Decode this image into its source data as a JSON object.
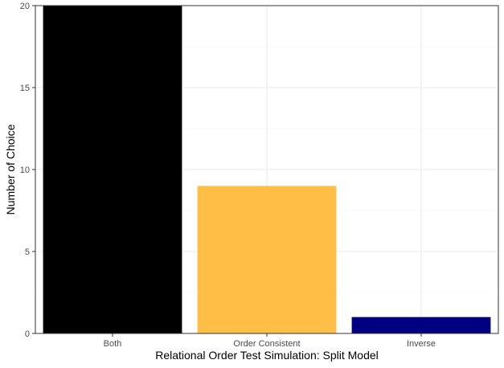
{
  "chart_data": {
    "type": "bar",
    "title": "",
    "xlabel": "Relational Order Test Simulation: Split Model",
    "ylabel": "Number of Choice",
    "categories": [
      "Both",
      "Order Consistent",
      "Inverse"
    ],
    "values": [
      20,
      9,
      1
    ],
    "colors": [
      "#000000",
      "#FFBF47",
      "#000080"
    ],
    "ylim": [
      0,
      20
    ],
    "yticks": [
      0,
      5,
      10,
      15,
      20
    ],
    "grid": true,
    "legend": "none",
    "theme": {
      "panel_background": "#ffffff",
      "panel_border": "#333333",
      "grid_major": "#ebebeb",
      "grid_minor": "#f5f5f5",
      "tick_text": "#4d4d4d"
    }
  }
}
